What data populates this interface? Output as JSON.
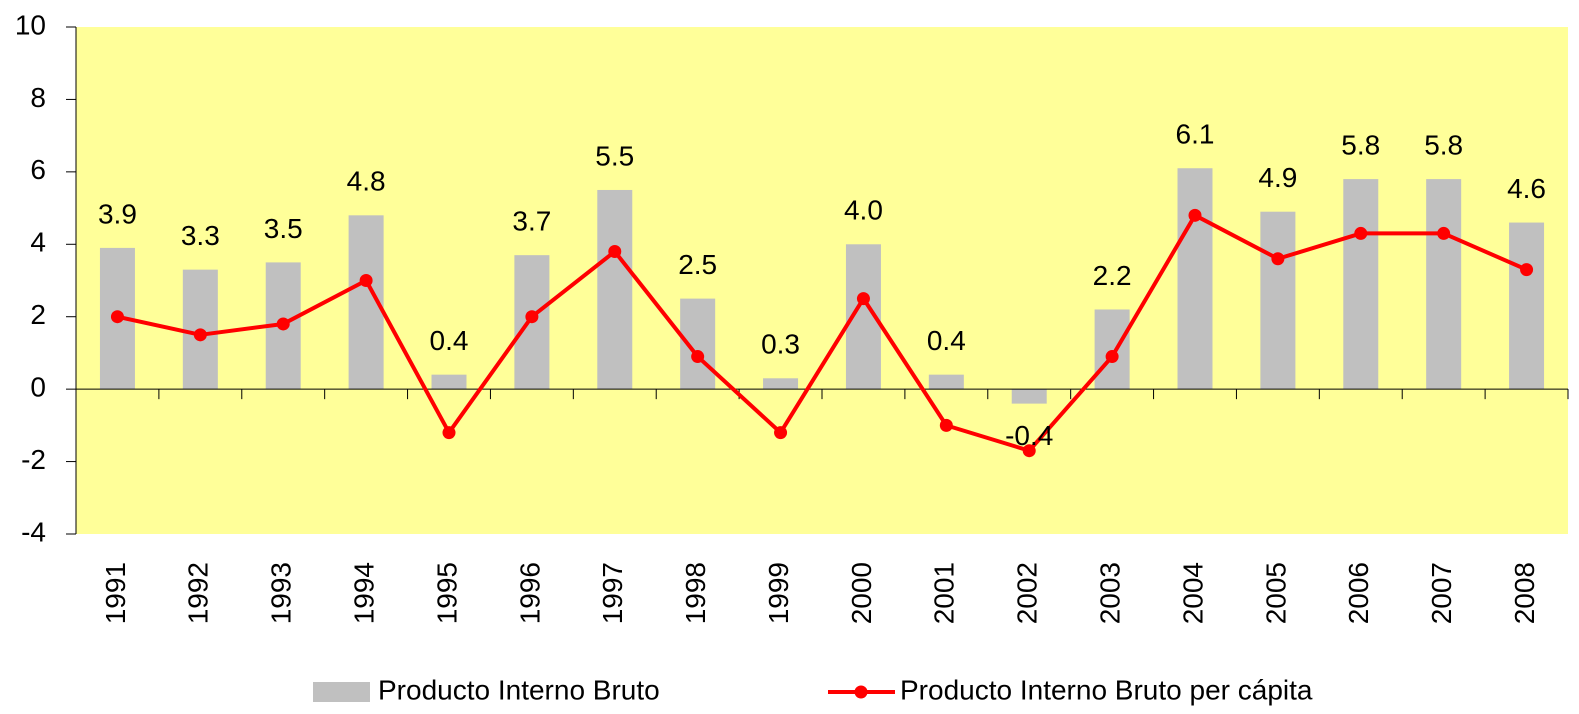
{
  "chart_data": {
    "type": "bar_line",
    "categories": [
      "1991",
      "1992",
      "1993",
      "1994",
      "1995",
      "1996",
      "1997",
      "1998",
      "1999",
      "2000",
      "2001",
      "2002",
      "2003",
      "2004",
      "2005",
      "2006",
      "2007",
      "2008"
    ],
    "series": [
      {
        "name": "Producto Interno Bruto",
        "type": "bar",
        "color": "#c0c0c0",
        "values": [
          3.9,
          3.3,
          3.5,
          4.8,
          0.4,
          3.7,
          5.5,
          2.5,
          0.3,
          4.0,
          0.4,
          -0.4,
          2.2,
          6.1,
          4.9,
          5.8,
          5.8,
          4.6
        ],
        "value_labels": [
          "3.9",
          "3.3",
          "3.5",
          "4.8",
          "0.4",
          "3.7",
          "5.5",
          "2.5",
          "0.3",
          "4.0",
          "0.4",
          "-0.4",
          "2.2",
          "6.1",
          "4.9",
          "5.8",
          "5.8",
          "4.6"
        ]
      },
      {
        "name": "Producto Interno Bruto per cápita",
        "type": "line",
        "color": "#ff0000",
        "values": [
          2.0,
          1.5,
          1.8,
          3.0,
          -1.2,
          2.0,
          3.8,
          0.9,
          -1.2,
          2.5,
          -1.0,
          -1.7,
          0.9,
          4.8,
          3.6,
          4.3,
          4.3,
          3.3
        ]
      }
    ],
    "ylim": [
      -4,
      10
    ],
    "yticks": [
      -4,
      -2,
      0,
      2,
      4,
      6,
      8,
      10
    ],
    "plot_background": "#ffff99",
    "legend": "bottom"
  }
}
